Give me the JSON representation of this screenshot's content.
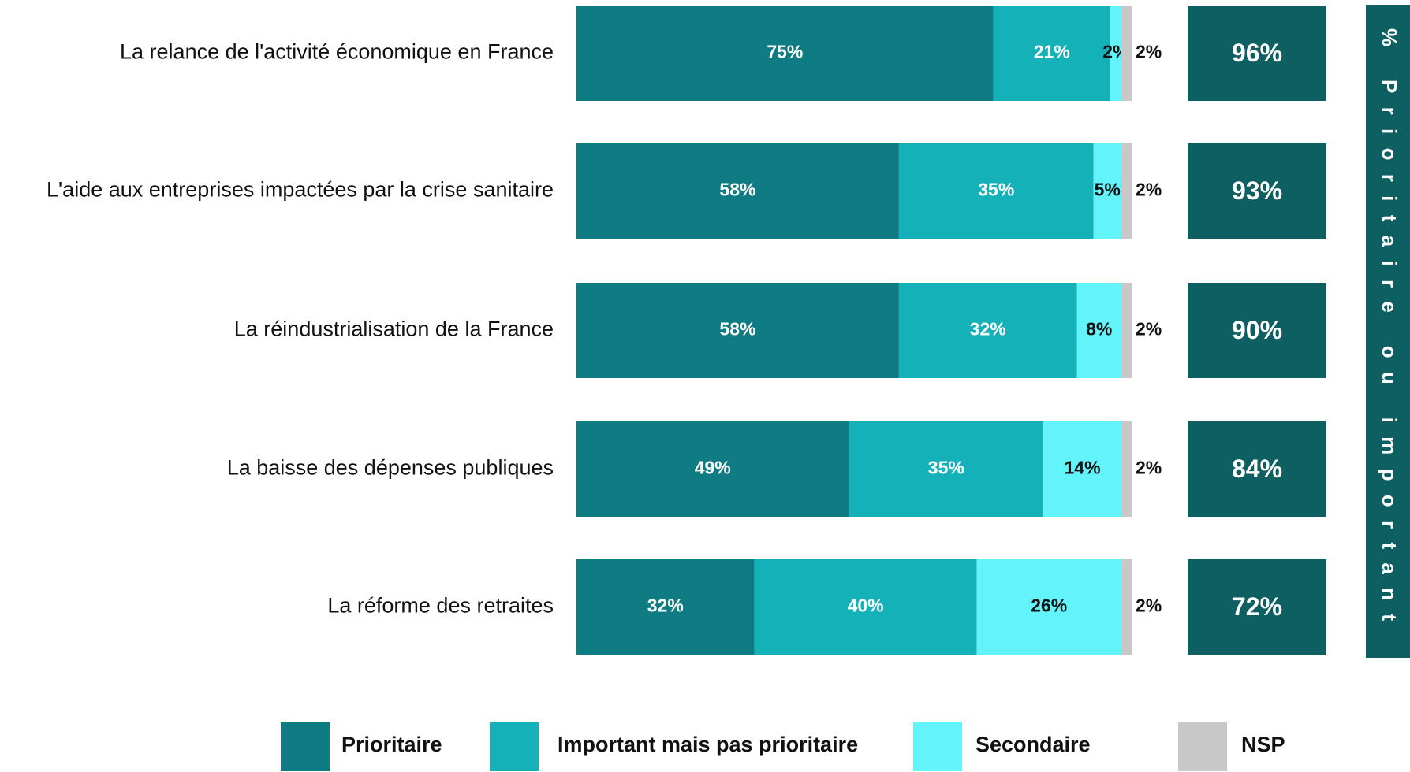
{
  "chart_data": {
    "type": "stacked-bar-horizontal",
    "categories": [
      "La relance de l'activité économique en France",
      "L'aide aux entreprises impactées par la crise sanitaire",
      "La réindustrialisation de la France",
      "La baisse des dépenses publiques",
      "La réforme des retraites"
    ],
    "xlim": [
      0,
      100
    ],
    "series": [
      {
        "name": "Prioritaire",
        "color": "#0f7b82",
        "values": [
          75,
          58,
          58,
          49,
          32
        ],
        "value_labels": [
          "75%",
          "58%",
          "58%",
          "49%",
          "32%"
        ]
      },
      {
        "name": "Important mais pas prioritaire",
        "color": "#15b1b9",
        "values": [
          21,
          35,
          32,
          35,
          40
        ],
        "value_labels": [
          "21%",
          "35%",
          "32%",
          "35%",
          "40%"
        ]
      },
      {
        "name": "Secondaire",
        "color": "#63f4fb",
        "values": [
          2,
          5,
          8,
          14,
          26
        ],
        "value_labels": [
          "2%",
          "5%",
          "8%",
          "14%",
          "26%"
        ]
      },
      {
        "name": "NSP",
        "color": "#c8c8c8",
        "values": [
          2,
          2,
          2,
          2,
          2
        ],
        "value_labels": [
          "2%",
          "2%",
          "2%",
          "2%",
          "2%"
        ]
      }
    ],
    "totals": {
      "title": "% Prioritaire ou important",
      "color": "#0d5f61",
      "values": [
        96,
        93,
        90,
        84,
        72
      ],
      "value_labels": [
        "96%",
        "93%",
        "90%",
        "84%",
        "72%"
      ]
    }
  }
}
